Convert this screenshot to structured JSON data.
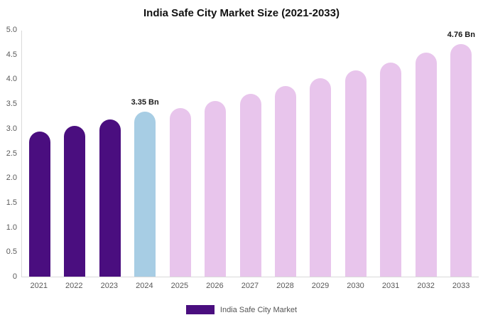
{
  "chart_data": {
    "type": "bar",
    "title": "India Safe City Market Size (2021-2033)",
    "xlabel": "",
    "ylabel": "",
    "categories": [
      "2021",
      "2022",
      "2023",
      "2024",
      "2025",
      "2026",
      "2027",
      "2028",
      "2029",
      "2030",
      "2031",
      "2032",
      "2033"
    ],
    "values": [
      2.95,
      3.07,
      3.2,
      3.35,
      3.43,
      3.57,
      3.72,
      3.88,
      4.03,
      4.19,
      4.35,
      4.55,
      4.76
    ],
    "bar_colors": [
      "#4a0e7f",
      "#4a0e7f",
      "#4a0e7f",
      "#a7cde4",
      "#e8c5ec",
      "#e8c5ec",
      "#e8c5ec",
      "#e8c5ec",
      "#e8c5ec",
      "#e8c5ec",
      "#e8c5ec",
      "#e8c5ec",
      "#e8c5ec"
    ],
    "data_labels": {
      "3": "3.35 Bn",
      "12": "4.76 Bn"
    },
    "ylim": [
      0,
      5
    ],
    "ytick_step": 0.5,
    "yticks": [
      "0",
      "0.5",
      "1.0",
      "1.5",
      "2.0",
      "2.5",
      "3.0",
      "3.5",
      "4.0",
      "4.5",
      "5.0"
    ],
    "grid": false,
    "legend": {
      "position": "bottom-center",
      "label": "India Safe City Market",
      "color": "#4a0e7f"
    },
    "colors": {
      "dark_purple": "#4a0e7f",
      "light_blue": "#a7cde4",
      "light_plum": "#e8c5ec",
      "axis_line": "#d9d9d9",
      "tick_text": "#595959"
    }
  }
}
